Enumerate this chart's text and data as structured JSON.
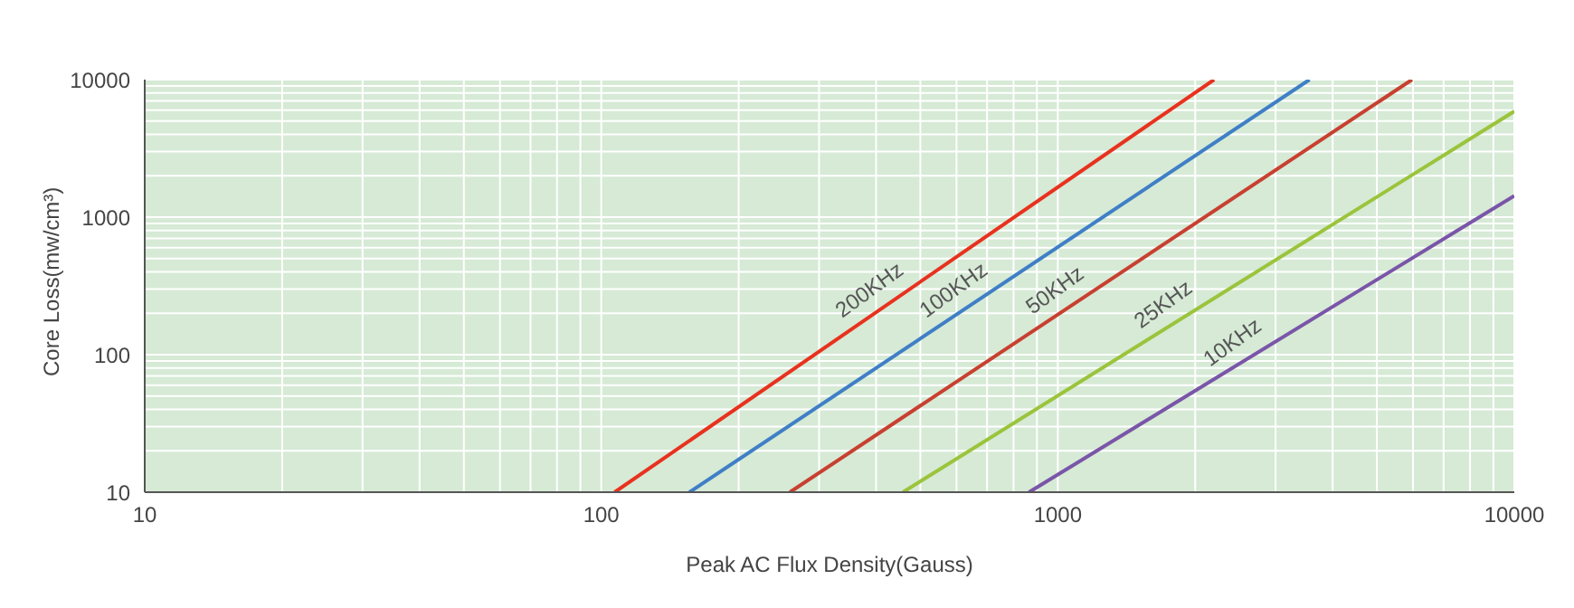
{
  "chart_data": {
    "type": "line",
    "xlabel": "Peak AC Flux Density(Gauss)",
    "ylabel": "Core Loss(mw/cm³)",
    "log": "xy",
    "grid": true,
    "legend": false,
    "marker": "none",
    "line_style": "solid",
    "xlim": [
      10,
      10000
    ],
    "xticks": [
      10,
      100,
      1000,
      10000
    ],
    "ylim": [
      10,
      10000
    ],
    "yticks": [
      10,
      100,
      1000,
      10000
    ],
    "series": [
      {
        "name": "200KHz",
        "color": "#e8321e",
        "x": [
          107,
          2200
        ],
        "values": [
          10,
          10000
        ]
      },
      {
        "name": "100KHz",
        "color": "#3f7fc6",
        "x": [
          156,
          3560
        ],
        "values": [
          10,
          10000
        ]
      },
      {
        "name": "50KHz",
        "color": "#c84030",
        "x": [
          259,
          5970
        ],
        "values": [
          10,
          10000
        ]
      },
      {
        "name": "25KHz",
        "color": "#9bc43c",
        "x": [
          458,
          10000
        ],
        "values": [
          10,
          5880
        ]
      },
      {
        "name": "10KHz",
        "color": "#7a55a8",
        "x": [
          865,
          10000
        ],
        "values": [
          10,
          1430
        ]
      }
    ]
  }
}
